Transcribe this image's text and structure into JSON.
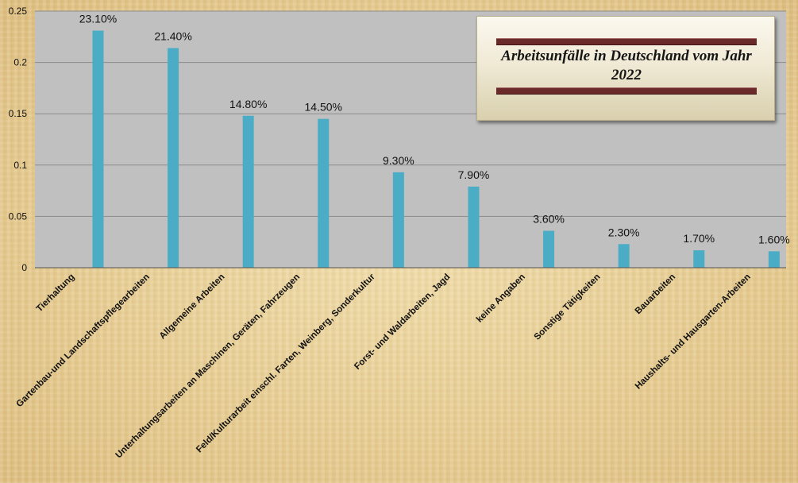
{
  "chart_data": {
    "type": "bar",
    "title": "Arbeitsunfälle in Deutschland vom Jahr 2022",
    "categories": [
      "Tierhaltung",
      "Gartenbau-und Landschaftspflegearbeiten",
      "Allgemeine Arbeiten",
      "Unterhaltungsarbeiten an Maschinen, Geräten, Fahrzeugen",
      "Feld/Kulturarbeit einschl. Farten, Weinberg, Sonderkultur",
      "Forst- und Waldarbeiten, Jagd",
      "keine Angaben",
      "Sonstige Tätigkeiten",
      "Bauarbeiten",
      "Haushalts- und Hausgarten-Arbeiten"
    ],
    "values": [
      0.231,
      0.214,
      0.148,
      0.145,
      0.093,
      0.079,
      0.036,
      0.023,
      0.017,
      0.016
    ],
    "data_labels": [
      "23.10%",
      "21.40%",
      "14.80%",
      "14.50%",
      "9.30%",
      "7.90%",
      "3.60%",
      "2.30%",
      "1.70%",
      "1.60%"
    ],
    "ylim": [
      0,
      0.25
    ],
    "yticks": [
      0,
      0.05,
      0.1,
      0.15,
      0.2,
      0.25
    ],
    "ytick_labels": [
      "0",
      "0.05",
      "0.1",
      "0.15",
      "0.2",
      "0.25"
    ],
    "xlabel": "",
    "ylabel": "",
    "grid": true,
    "legend": "none",
    "colors": {
      "bar": "#4bacc6",
      "plot_background": "#c0c0c0",
      "gridline": "#8c8c8c",
      "title_rule": "#6a2a2a"
    }
  }
}
